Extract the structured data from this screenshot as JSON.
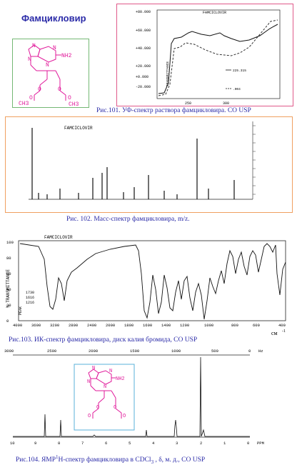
{
  "molecule_title": "Фамцикловир",
  "structure": {
    "n9": "N",
    "n7": "N",
    "n1": "N",
    "n3": "N",
    "nh2": "NH2",
    "o1": "O",
    "o2": "O",
    "o3": "O",
    "o4": "O",
    "ch3a": "CH3",
    "ch3b": "CH3"
  },
  "figures": {
    "uv": {
      "caption": "Рис.101. УФ-спектр раствора фамцикловира. СО USP",
      "header": "FAMCICLOVIR",
      "ylabel": "TRANSMITTANCE",
      "yticks": [
        "+80.000",
        "+60.000",
        "+40.000",
        "+20.000",
        "+0.000",
        "-20.000"
      ],
      "xticks": [
        "250",
        "300"
      ],
      "legend": [
        "225.315",
        ".004"
      ]
    },
    "ms": {
      "caption": "Рис. 102. Масс-спектр фамцикловира, m/z.",
      "header": "FAMCICLOVIR"
    },
    "ir": {
      "caption": "Рис.103. ИК-спектр фамцикловира, диск калия бромида, СО USP",
      "header": "FAMCICLOVIR",
      "ylabel": "% TRANSMITTANCE",
      "yticks": [
        "100",
        "80",
        "60",
        "40",
        "20",
        "0"
      ],
      "xticks": [
        "4000",
        "3600",
        "3200",
        "2800",
        "2400",
        "2000",
        "1800",
        "1600",
        "1400",
        "1200",
        "1000",
        "800",
        "600",
        "400"
      ],
      "unit": "см",
      "unit_exp": "-1",
      "peak_list": [
        "1730",
        "1616",
        "1216"
      ],
      "peak_tag": "PEAK"
    },
    "nmr": {
      "caption_pre": "Рис.104. ЯМР",
      "caption_sup": "1",
      "caption_post": "Н-спектр фамцикловира в CDCl",
      "caption_sub": "3",
      "caption_end": " , δ, м. д., СО USP",
      "hz_ticks": [
        "3000",
        "2500",
        "2000",
        "1500",
        "1000",
        "500",
        "0"
      ],
      "hz_label": "Hz",
      "ppm_ticks": [
        "10",
        "9",
        "8",
        "7",
        "6",
        "5",
        "4",
        "3",
        "2",
        "1",
        "0"
      ],
      "ppm_label": "PPM"
    }
  }
}
